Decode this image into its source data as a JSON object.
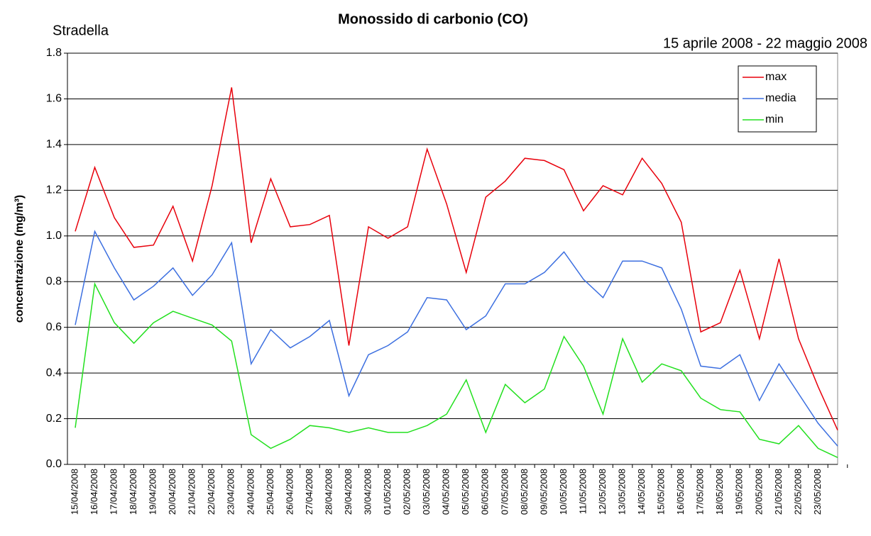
{
  "chart_data": {
    "type": "line",
    "title": "Monossido di carbonio (CO)",
    "annotations": [
      "Stradella",
      "15 aprile 2008 - 22 maggio 2008"
    ],
    "ylabel": "concentrazione (mg/m³)",
    "categories": [
      "15/04/2008",
      "16/04/2008",
      "17/04/2008",
      "18/04/2008",
      "19/04/2008",
      "20/04/2008",
      "21/04/2008",
      "22/04/2008",
      "23/04/2008",
      "24/04/2008",
      "25/04/2008",
      "26/04/2008",
      "27/04/2008",
      "28/04/2008",
      "29/04/2008",
      "30/04/2008",
      "01/05/2008",
      "02/05/2008",
      "03/05/2008",
      "04/05/2008",
      "05/05/2008",
      "06/05/2008",
      "07/05/2008",
      "08/05/2008",
      "09/05/2008",
      "10/05/2008",
      "11/05/2008",
      "12/05/2008",
      "13/05/2008",
      "14/05/2008",
      "15/05/2008",
      "16/05/2008",
      "17/05/2008",
      "18/05/2008",
      "19/05/2008",
      "20/05/2008",
      "21/05/2008",
      "22/05/2008",
      "23/05/2008",
      null
    ],
    "series": [
      {
        "name": "max",
        "color": "#e8000b",
        "values": [
          1.02,
          1.3,
          1.08,
          0.95,
          0.96,
          1.13,
          0.89,
          1.22,
          1.65,
          0.97,
          1.25,
          1.04,
          1.05,
          1.09,
          0.52,
          1.04,
          0.99,
          1.04,
          1.38,
          1.14,
          0.84,
          1.17,
          1.24,
          1.34,
          1.33,
          1.29,
          1.11,
          1.22,
          1.18,
          1.34,
          1.23,
          1.06,
          0.58,
          0.62,
          0.85,
          0.55,
          0.9,
          0.55,
          0.34,
          0.15
        ]
      },
      {
        "name": "media",
        "color": "#3c6fe0",
        "values": [
          0.61,
          1.02,
          0.86,
          0.72,
          0.78,
          0.86,
          0.74,
          0.83,
          0.97,
          0.44,
          0.59,
          0.51,
          0.56,
          0.63,
          0.3,
          0.48,
          0.52,
          0.58,
          0.73,
          0.72,
          0.59,
          0.65,
          0.79,
          0.79,
          0.84,
          0.93,
          0.81,
          0.73,
          0.89,
          0.89,
          0.86,
          0.68,
          0.43,
          0.42,
          0.48,
          0.28,
          0.44,
          0.31,
          0.18,
          0.08
        ]
      },
      {
        "name": "min",
        "color": "#22e01e",
        "values": [
          0.16,
          0.79,
          0.62,
          0.53,
          0.62,
          0.67,
          0.64,
          0.61,
          0.54,
          0.13,
          0.07,
          0.11,
          0.17,
          0.16,
          0.14,
          0.16,
          0.14,
          0.14,
          0.17,
          0.22,
          0.37,
          0.14,
          0.35,
          0.27,
          0.33,
          0.56,
          0.43,
          0.22,
          0.55,
          0.36,
          0.44,
          0.41,
          0.29,
          0.24,
          0.23,
          0.11,
          0.09,
          0.17,
          0.07,
          0.03
        ]
      }
    ],
    "ylim": [
      0,
      1.8
    ],
    "yticks": [
      {
        "value": 0,
        "label": "0.0"
      },
      0.2,
      0.4,
      0.6,
      0.8,
      {
        "value": 1,
        "label": "1.0"
      },
      1.2,
      1.4,
      1.6,
      1.8
    ],
    "grid": true,
    "legend": "upper right"
  }
}
